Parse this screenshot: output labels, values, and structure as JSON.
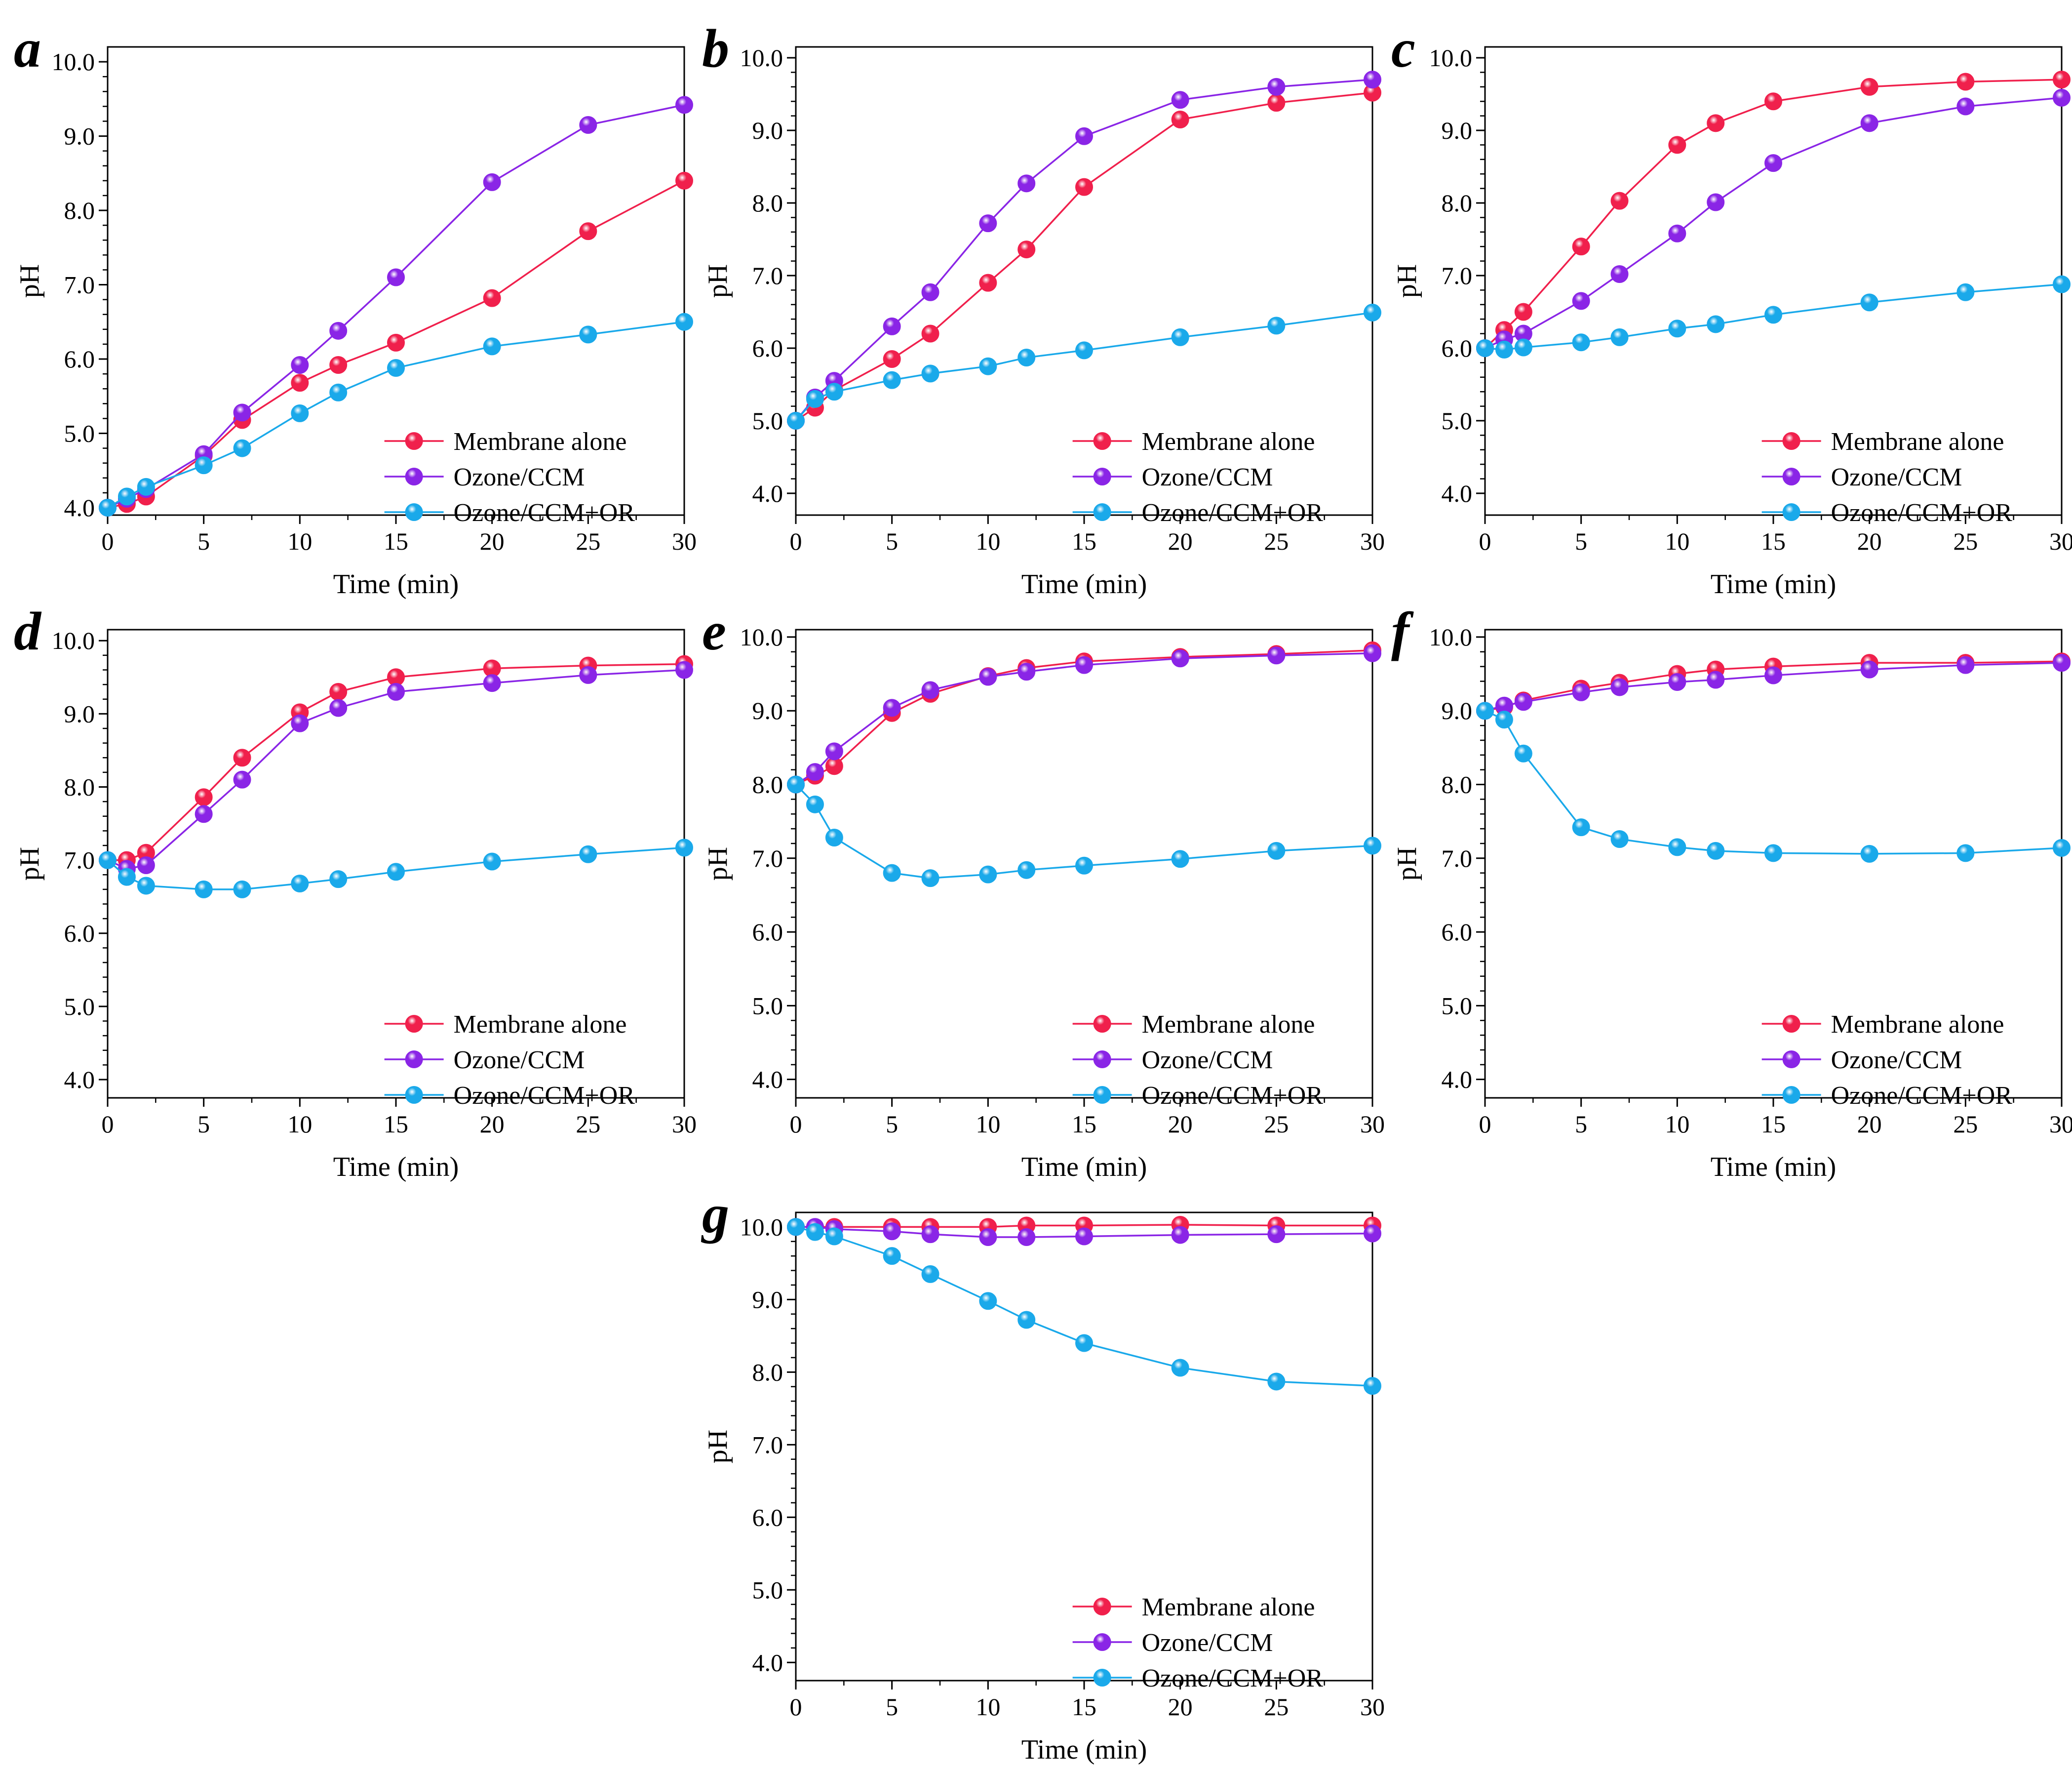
{
  "colors": {
    "membrane": "#f0204c",
    "ozone": "#8a25e6",
    "or": "#1aa9ea",
    "axis": "#000000"
  },
  "chart_data": [
    {
      "type": "line",
      "panel_label": "a",
      "xlabel": "Time (min)",
      "ylabel": "pH",
      "xlim": [
        0,
        30
      ],
      "ylim": [
        3.9,
        10.2
      ],
      "xticks": [
        "0",
        "5",
        "10",
        "15",
        "20",
        "25",
        "30"
      ],
      "yticks": [
        "4.0",
        "5.0",
        "6.0",
        "7.0",
        "8.0",
        "9.0",
        "10.0"
      ],
      "legend_position": "bottom-right",
      "x": [
        0,
        1,
        2,
        5,
        7,
        10,
        12,
        15,
        20,
        25,
        30
      ],
      "series": [
        {
          "name": "Membrane alone",
          "values": [
            4.0,
            4.05,
            4.15,
            4.7,
            5.18,
            5.68,
            5.92,
            6.22,
            6.82,
            7.72,
            8.4
          ]
        },
        {
          "name": "Ozone/CCM",
          "values": [
            4.0,
            4.12,
            4.25,
            4.72,
            5.28,
            5.92,
            6.38,
            7.1,
            8.38,
            9.15,
            9.42
          ]
        },
        {
          "name": "Ozone/CCM+OR",
          "values": [
            4.0,
            4.15,
            4.28,
            4.57,
            4.8,
            5.27,
            5.55,
            5.88,
            6.17,
            6.33,
            6.5
          ]
        }
      ]
    },
    {
      "type": "line",
      "panel_label": "b",
      "xlabel": "Time (min)",
      "ylabel": "pH",
      "xlim": [
        0,
        30
      ],
      "ylim": [
        3.7,
        10.15
      ],
      "xticks": [
        "0",
        "5",
        "10",
        "15",
        "20",
        "25",
        "30"
      ],
      "yticks": [
        "4.0",
        "5.0",
        "6.0",
        "7.0",
        "8.0",
        "9.0",
        "10.0"
      ],
      "legend_position": "bottom-right",
      "x": [
        0,
        1,
        2,
        5,
        7,
        10,
        12,
        15,
        20,
        25,
        30
      ],
      "series": [
        {
          "name": "Membrane alone",
          "values": [
            5.0,
            5.18,
            5.42,
            5.85,
            6.2,
            6.9,
            7.36,
            8.22,
            9.15,
            9.38,
            9.52
          ]
        },
        {
          "name": "Ozone/CCM",
          "values": [
            5.0,
            5.32,
            5.55,
            6.3,
            6.77,
            7.72,
            8.27,
            8.92,
            9.42,
            9.6,
            9.7
          ]
        },
        {
          "name": "Ozone/CCM+OR",
          "values": [
            5.0,
            5.3,
            5.4,
            5.56,
            5.65,
            5.75,
            5.87,
            5.97,
            6.15,
            6.31,
            6.49
          ]
        }
      ]
    },
    {
      "type": "line",
      "panel_label": "c",
      "xlabel": "Time (min)",
      "ylabel": "pH",
      "xlim": [
        0,
        30
      ],
      "ylim": [
        3.7,
        10.15
      ],
      "xticks": [
        "0",
        "5",
        "10",
        "15",
        "20",
        "25",
        "30"
      ],
      "yticks": [
        "4.0",
        "5.0",
        "6.0",
        "7.0",
        "8.0",
        "9.0",
        "10.0"
      ],
      "legend_position": "bottom-right",
      "x": [
        0,
        1,
        2,
        5,
        7,
        10,
        12,
        15,
        20,
        25,
        30
      ],
      "series": [
        {
          "name": "Membrane alone",
          "values": [
            6.0,
            6.25,
            6.5,
            7.4,
            8.03,
            8.8,
            9.1,
            9.4,
            9.6,
            9.67,
            9.7
          ]
        },
        {
          "name": "Ozone/CCM",
          "values": [
            6.0,
            6.12,
            6.2,
            6.65,
            7.02,
            7.58,
            8.01,
            8.55,
            9.1,
            9.33,
            9.45
          ]
        },
        {
          "name": "Ozone/CCM+OR",
          "values": [
            6.0,
            5.98,
            6.01,
            6.08,
            6.15,
            6.27,
            6.33,
            6.46,
            6.63,
            6.77,
            6.88
          ]
        }
      ]
    },
    {
      "type": "line",
      "panel_label": "d",
      "xlabel": "Time (min)",
      "ylabel": "pH",
      "xlim": [
        0,
        30
      ],
      "ylim": [
        3.75,
        10.15
      ],
      "xticks": [
        "0",
        "5",
        "10",
        "15",
        "20",
        "25",
        "30"
      ],
      "yticks": [
        "4.0",
        "5.0",
        "6.0",
        "7.0",
        "8.0",
        "9.0",
        "10.0"
      ],
      "legend_position": "bottom-right",
      "x": [
        0,
        1,
        2,
        5,
        7,
        10,
        12,
        15,
        20,
        25,
        30
      ],
      "series": [
        {
          "name": "Membrane alone",
          "values": [
            7.0,
            7.0,
            7.1,
            7.86,
            8.4,
            9.02,
            9.3,
            9.5,
            9.62,
            9.66,
            9.68
          ]
        },
        {
          "name": "Ozone/CCM",
          "values": [
            7.0,
            6.88,
            6.93,
            7.63,
            8.1,
            8.87,
            9.08,
            9.3,
            9.42,
            9.53,
            9.6
          ]
        },
        {
          "name": "Ozone/CCM+OR",
          "values": [
            7.0,
            6.77,
            6.65,
            6.6,
            6.6,
            6.68,
            6.74,
            6.84,
            6.98,
            7.08,
            7.17
          ]
        }
      ]
    },
    {
      "type": "line",
      "panel_label": "e",
      "xlabel": "Time (min)",
      "ylabel": "pH",
      "xlim": [
        0,
        30
      ],
      "ylim": [
        3.75,
        10.1
      ],
      "xticks": [
        "0",
        "5",
        "10",
        "15",
        "20",
        "25",
        "30"
      ],
      "yticks": [
        "4.0",
        "5.0",
        "6.0",
        "7.0",
        "8.0",
        "9.0",
        "10.0"
      ],
      "legend_position": "bottom-right",
      "x": [
        0,
        1,
        2,
        5,
        7,
        10,
        12,
        15,
        20,
        25,
        30
      ],
      "series": [
        {
          "name": "Membrane alone",
          "values": [
            8.0,
            8.12,
            8.25,
            8.97,
            9.23,
            9.47,
            9.58,
            9.67,
            9.73,
            9.77,
            9.82
          ]
        },
        {
          "name": "Ozone/CCM",
          "values": [
            8.0,
            8.17,
            8.45,
            9.04,
            9.28,
            9.46,
            9.53,
            9.62,
            9.71,
            9.75,
            9.78
          ]
        },
        {
          "name": "Ozone/CCM+OR",
          "values": [
            8.0,
            7.73,
            7.28,
            6.8,
            6.73,
            6.78,
            6.84,
            6.9,
            6.99,
            7.1,
            7.17
          ]
        }
      ]
    },
    {
      "type": "line",
      "panel_label": "f",
      "xlabel": "Time (min)",
      "ylabel": "pH",
      "xlim": [
        0,
        30
      ],
      "ylim": [
        3.75,
        10.1
      ],
      "xticks": [
        "0",
        "5",
        "10",
        "15",
        "20",
        "25",
        "30"
      ],
      "yticks": [
        "4.0",
        "5.0",
        "6.0",
        "7.0",
        "8.0",
        "9.0",
        "10.0"
      ],
      "legend_position": "bottom-right",
      "x": [
        0,
        1,
        2,
        5,
        7,
        10,
        12,
        15,
        20,
        25,
        30
      ],
      "series": [
        {
          "name": "Membrane alone",
          "values": [
            9.0,
            9.05,
            9.14,
            9.3,
            9.38,
            9.5,
            9.56,
            9.6,
            9.65,
            9.65,
            9.67
          ]
        },
        {
          "name": "Ozone/CCM",
          "values": [
            9.0,
            9.07,
            9.12,
            9.25,
            9.32,
            9.39,
            9.42,
            9.48,
            9.56,
            9.62,
            9.65
          ]
        },
        {
          "name": "Ozone/CCM+OR",
          "values": [
            9.0,
            8.88,
            8.42,
            7.42,
            7.26,
            7.15,
            7.1,
            7.07,
            7.06,
            7.07,
            7.14
          ]
        }
      ]
    },
    {
      "type": "line",
      "panel_label": "g",
      "xlabel": "Time (min)",
      "ylabel": "pH",
      "xlim": [
        0,
        30
      ],
      "ylim": [
        3.75,
        10.2
      ],
      "xticks": [
        "0",
        "5",
        "10",
        "15",
        "20",
        "25",
        "30"
      ],
      "yticks": [
        "4.0",
        "5.0",
        "6.0",
        "7.0",
        "8.0",
        "9.0",
        "10.0"
      ],
      "legend_position": "bottom-right",
      "x": [
        0,
        1,
        2,
        5,
        7,
        10,
        12,
        15,
        20,
        25,
        30
      ],
      "series": [
        {
          "name": "Membrane alone",
          "values": [
            10.0,
            10.0,
            10.0,
            10.0,
            10.0,
            10.0,
            10.02,
            10.02,
            10.03,
            10.02,
            10.02
          ]
        },
        {
          "name": "Ozone/CCM",
          "values": [
            10.0,
            10.0,
            9.97,
            9.94,
            9.9,
            9.86,
            9.86,
            9.87,
            9.89,
            9.9,
            9.91
          ]
        },
        {
          "name": "Ozone/CCM+OR",
          "values": [
            10.0,
            9.93,
            9.87,
            9.6,
            9.35,
            8.98,
            8.72,
            8.4,
            8.06,
            7.87,
            7.81
          ]
        }
      ]
    }
  ]
}
